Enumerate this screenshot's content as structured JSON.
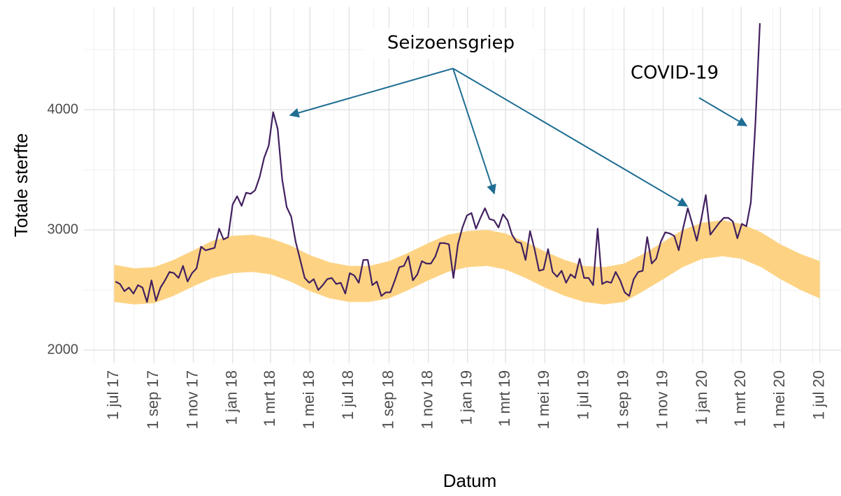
{
  "chart_data": {
    "type": "line",
    "xlabel": "Datum",
    "ylabel": "Totale sterfte",
    "annotations": [
      "Seizoensgriep",
      "COVID-19"
    ],
    "xlim": [
      "2017-05-15",
      "2020-08-03"
    ],
    "ylim": [
      1890,
      4855
    ],
    "yticks": [
      2000,
      3000,
      4000
    ],
    "xticks": [
      {
        "value": "2017-07-01",
        "label": "1 jul 17"
      },
      {
        "value": "2017-09-01",
        "label": "1 sep 17"
      },
      {
        "value": "2017-11-01",
        "label": "1 nov 17"
      },
      {
        "value": "2018-01-01",
        "label": "1 jan 18"
      },
      {
        "value": "2018-03-01",
        "label": "1 mrt 18"
      },
      {
        "value": "2018-05-01",
        "label": "1 mei 18"
      },
      {
        "value": "2018-07-01",
        "label": "1 jul 18"
      },
      {
        "value": "2018-09-01",
        "label": "1 sep 18"
      },
      {
        "value": "2018-11-01",
        "label": "1 nov 18"
      },
      {
        "value": "2019-01-01",
        "label": "1 jan 19"
      },
      {
        "value": "2019-03-01",
        "label": "1 mrt 19"
      },
      {
        "value": "2019-05-01",
        "label": "1 mei 19"
      },
      {
        "value": "2019-07-01",
        "label": "1 jul 19"
      },
      {
        "value": "2019-09-01",
        "label": "1 sep 19"
      },
      {
        "value": "2019-11-01",
        "label": "1 nov 19"
      },
      {
        "value": "2020-01-01",
        "label": "1 jan 20"
      },
      {
        "value": "2020-03-01",
        "label": "1 mrt 20"
      },
      {
        "value": "2020-05-01",
        "label": "1 mei 20"
      },
      {
        "value": "2020-07-01",
        "label": "1 jul 20"
      }
    ],
    "grid": true,
    "band": {
      "color": "#fdd383",
      "x": [
        "2017-07-01",
        "2017-08-01",
        "2017-09-01",
        "2017-10-01",
        "2017-11-01",
        "2017-12-01",
        "2018-01-01",
        "2018-02-01",
        "2018-03-01",
        "2018-04-01",
        "2018-05-01",
        "2018-06-01",
        "2018-07-01",
        "2018-08-01",
        "2018-09-01",
        "2018-10-01",
        "2018-11-01",
        "2018-12-01",
        "2019-01-01",
        "2019-02-01",
        "2019-03-01",
        "2019-04-01",
        "2019-05-01",
        "2019-06-01",
        "2019-07-01",
        "2019-08-01",
        "2019-09-01",
        "2019-10-01",
        "2019-11-01",
        "2019-12-01",
        "2020-01-01",
        "2020-02-01",
        "2020-03-01",
        "2020-04-01",
        "2020-05-01",
        "2020-06-01",
        "2020-07-01"
      ],
      "upper": [
        2710,
        2680,
        2690,
        2750,
        2830,
        2910,
        2950,
        2960,
        2930,
        2870,
        2790,
        2730,
        2700,
        2700,
        2740,
        2810,
        2890,
        2960,
        2990,
        3000,
        2970,
        2900,
        2820,
        2750,
        2700,
        2690,
        2720,
        2800,
        2900,
        3000,
        3060,
        3080,
        3050,
        2980,
        2880,
        2800,
        2740
      ],
      "lower": [
        2400,
        2380,
        2390,
        2450,
        2530,
        2600,
        2640,
        2650,
        2630,
        2570,
        2490,
        2430,
        2400,
        2400,
        2430,
        2500,
        2580,
        2650,
        2690,
        2700,
        2670,
        2600,
        2520,
        2450,
        2400,
        2380,
        2400,
        2490,
        2590,
        2690,
        2760,
        2780,
        2760,
        2690,
        2590,
        2500,
        2430
      ]
    },
    "x": [
      "2017-07-03",
      "2017-07-10",
      "2017-07-17",
      "2017-07-24",
      "2017-07-31",
      "2017-08-07",
      "2017-08-14",
      "2017-08-21",
      "2017-08-28",
      "2017-09-04",
      "2017-09-11",
      "2017-09-18",
      "2017-09-25",
      "2017-10-02",
      "2017-10-09",
      "2017-10-16",
      "2017-10-23",
      "2017-10-30",
      "2017-11-06",
      "2017-11-13",
      "2017-11-20",
      "2017-11-27",
      "2017-12-04",
      "2017-12-11",
      "2017-12-18",
      "2017-12-25",
      "2018-01-01",
      "2018-01-08",
      "2018-01-15",
      "2018-01-22",
      "2018-01-29",
      "2018-02-05",
      "2018-02-12",
      "2018-02-19",
      "2018-02-26",
      "2018-03-05",
      "2018-03-12",
      "2018-03-19",
      "2018-03-26",
      "2018-04-02",
      "2018-04-09",
      "2018-04-16",
      "2018-04-23",
      "2018-04-30",
      "2018-05-07",
      "2018-05-14",
      "2018-05-21",
      "2018-05-28",
      "2018-06-04",
      "2018-06-11",
      "2018-06-18",
      "2018-06-25",
      "2018-07-02",
      "2018-07-09",
      "2018-07-16",
      "2018-07-23",
      "2018-07-30",
      "2018-08-06",
      "2018-08-13",
      "2018-08-20",
      "2018-08-27",
      "2018-09-03",
      "2018-09-10",
      "2018-09-17",
      "2018-09-24",
      "2018-10-01",
      "2018-10-08",
      "2018-10-15",
      "2018-10-22",
      "2018-10-29",
      "2018-11-05",
      "2018-11-12",
      "2018-11-19",
      "2018-11-26",
      "2018-12-03",
      "2018-12-10",
      "2018-12-17",
      "2018-12-24",
      "2018-12-31",
      "2019-01-07",
      "2019-01-14",
      "2019-01-21",
      "2019-01-28",
      "2019-02-04",
      "2019-02-11",
      "2019-02-18",
      "2019-02-25",
      "2019-03-04",
      "2019-03-11",
      "2019-03-18",
      "2019-03-25",
      "2019-04-01",
      "2019-04-08",
      "2019-04-15",
      "2019-04-22",
      "2019-04-29",
      "2019-05-06",
      "2019-05-13",
      "2019-05-20",
      "2019-05-27",
      "2019-06-03",
      "2019-06-10",
      "2019-06-17",
      "2019-06-24",
      "2019-07-01",
      "2019-07-08",
      "2019-07-15",
      "2019-07-22",
      "2019-07-29",
      "2019-08-05",
      "2019-08-12",
      "2019-08-19",
      "2019-08-26",
      "2019-09-02",
      "2019-09-09",
      "2019-09-16",
      "2019-09-23",
      "2019-09-30",
      "2019-10-07",
      "2019-10-14",
      "2019-10-21",
      "2019-10-28",
      "2019-11-04",
      "2019-11-11",
      "2019-11-18",
      "2019-11-25",
      "2019-12-02",
      "2019-12-09",
      "2019-12-16",
      "2019-12-23",
      "2019-12-30",
      "2020-01-06",
      "2020-01-13",
      "2020-01-20",
      "2020-01-27",
      "2020-02-03",
      "2020-02-10",
      "2020-02-17",
      "2020-02-24",
      "2020-03-02",
      "2020-03-09",
      "2020-03-16",
      "2020-03-23",
      "2020-03-30"
    ],
    "series": [
      {
        "color": "#42205f",
        "values": [
          2570,
          2550,
          2490,
          2520,
          2470,
          2540,
          2520,
          2400,
          2580,
          2410,
          2520,
          2580,
          2650,
          2640,
          2600,
          2700,
          2570,
          2640,
          2680,
          2860,
          2830,
          2840,
          2850,
          3010,
          2920,
          2940,
          3210,
          3280,
          3200,
          3310,
          3300,
          3330,
          3440,
          3600,
          3700,
          3980,
          3840,
          3420,
          3190,
          3110,
          2900,
          2750,
          2600,
          2560,
          2590,
          2500,
          2540,
          2590,
          2600,
          2550,
          2560,
          2470,
          2640,
          2620,
          2560,
          2750,
          2750,
          2540,
          2570,
          2450,
          2480,
          2480,
          2580,
          2690,
          2700,
          2780,
          2580,
          2630,
          2740,
          2720,
          2720,
          2780,
          2890,
          2890,
          2880,
          2600,
          2880,
          3020,
          3120,
          3140,
          3010,
          3100,
          3180,
          3090,
          3080,
          3020,
          3130,
          3080,
          2960,
          2900,
          2890,
          2750,
          2990,
          2840,
          2660,
          2670,
          2840,
          2650,
          2610,
          2660,
          2560,
          2630,
          2600,
          2760,
          2600,
          2600,
          2540,
          3010,
          2550,
          2570,
          2560,
          2650,
          2580,
          2480,
          2450,
          2590,
          2650,
          2660,
          2940,
          2720,
          2760,
          2900,
          2980,
          2970,
          2950,
          2830,
          3020,
          3180,
          3050,
          2910,
          3090,
          3290,
          2960,
          3010,
          3060,
          3100,
          3100,
          3070,
          2930,
          3050,
          3030,
          3230,
          3880,
          4720
        ]
      }
    ]
  }
}
